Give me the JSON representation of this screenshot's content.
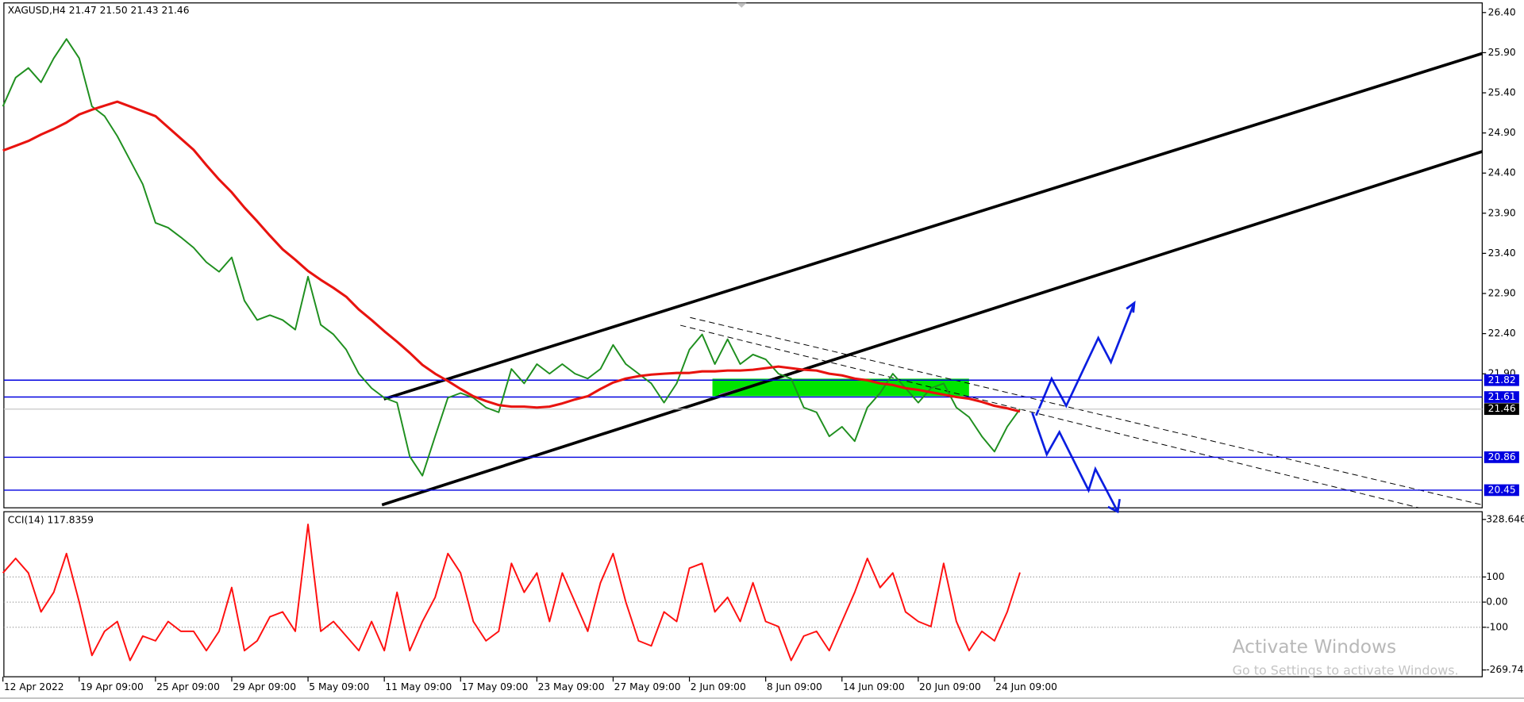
{
  "chart_data": [
    {
      "type": "line",
      "title": "XAGUSD,H4  21.47 21.50 21.43 21.46",
      "categories": [
        "12 Apr 2022",
        null,
        null,
        null,
        null,
        null,
        "19 Apr 09:00",
        null,
        null,
        null,
        null,
        null,
        "25 Apr 09:00",
        null,
        null,
        null,
        null,
        null,
        "29 Apr 09:00",
        null,
        null,
        null,
        null,
        null,
        "5 May 09:00",
        null,
        null,
        null,
        null,
        null,
        "11 May 09:00",
        null,
        null,
        null,
        null,
        null,
        "17 May 09:00",
        null,
        null,
        null,
        null,
        null,
        "23 May 09:00",
        null,
        null,
        null,
        null,
        null,
        "27 May 09:00",
        null,
        null,
        null,
        null,
        null,
        "2 Jun 09:00",
        null,
        null,
        null,
        null,
        null,
        "8 Jun 09:00",
        null,
        null,
        null,
        null,
        null,
        "14 Jun 09:00",
        null,
        null,
        null,
        null,
        null,
        "20 Jun 09:00",
        null,
        null,
        null,
        null,
        null,
        "24 Jun 09:00",
        null,
        null
      ],
      "series": [
        {
          "color": "#1f8f1f",
          "values": [
            25.23,
            25.59,
            25.71,
            25.53,
            25.83,
            26.07,
            25.83,
            25.23,
            25.11,
            24.86,
            24.56,
            24.26,
            23.78,
            23.72,
            23.6,
            23.47,
            23.29,
            23.17,
            23.35,
            22.81,
            22.57,
            22.63,
            22.57,
            22.45,
            23.11,
            22.51,
            22.39,
            22.2,
            21.9,
            21.72,
            21.6,
            21.54,
            20.87,
            20.63,
            21.12,
            21.6,
            21.66,
            21.6,
            21.48,
            21.42,
            21.96,
            21.78,
            22.02,
            21.9,
            22.02,
            21.9,
            21.84,
            21.96,
            22.26,
            22.02,
            21.9,
            21.78,
            21.54,
            21.78,
            22.2,
            22.39,
            22.02,
            22.33,
            22.02,
            22.14,
            22.08,
            21.9,
            21.84,
            21.48,
            21.42,
            21.12,
            21.24,
            21.06,
            21.48,
            21.66,
            21.9,
            21.72,
            21.54,
            21.72,
            21.78,
            21.48,
            21.36,
            21.12,
            20.93,
            21.24,
            21.46
          ]
        },
        {
          "color": "#e8130f",
          "values": [
            24.68,
            24.74,
            24.8,
            24.88,
            24.95,
            25.03,
            25.13,
            25.19,
            25.24,
            25.29,
            25.23,
            25.17,
            25.11,
            24.97,
            24.83,
            24.69,
            24.5,
            24.32,
            24.16,
            23.97,
            23.8,
            23.62,
            23.45,
            23.32,
            23.18,
            23.07,
            22.97,
            22.86,
            22.7,
            22.57,
            22.43,
            22.3,
            22.16,
            22.01,
            21.9,
            21.81,
            21.71,
            21.62,
            21.56,
            21.51,
            21.49,
            21.49,
            21.48,
            21.49,
            21.53,
            21.58,
            21.62,
            21.71,
            21.79,
            21.84,
            21.87,
            21.89,
            21.9,
            21.91,
            21.91,
            21.93,
            21.93,
            21.94,
            21.94,
            21.95,
            21.97,
            21.99,
            21.97,
            21.95,
            21.94,
            21.9,
            21.88,
            21.84,
            21.82,
            21.78,
            21.76,
            21.72,
            21.7,
            21.67,
            21.64,
            21.61,
            21.59,
            21.55,
            21.5,
            21.47,
            21.43
          ]
        }
      ],
      "ylim": [
        20.23,
        26.52
      ],
      "yticks": [
        {
          "value": 26.4,
          "label": "26.40"
        },
        {
          "value": 25.9,
          "label": "25.90"
        },
        {
          "value": 25.4,
          "label": "25.40"
        },
        {
          "value": 24.9,
          "label": "24.90"
        },
        {
          "value": 24.4,
          "label": "24.40"
        },
        {
          "value": 23.9,
          "label": "23.90"
        },
        {
          "value": 23.4,
          "label": "23.40"
        },
        {
          "value": 22.9,
          "label": "22.90"
        },
        {
          "value": 22.4,
          "label": "22.40"
        },
        {
          "value": 21.9,
          "label": "21.90"
        }
      ],
      "levels": [
        21.82,
        21.61,
        20.86,
        20.45
      ],
      "level_color": "#0000e0",
      "last_price": 21.46
    },
    {
      "type": "line",
      "title": "CCI(14) 117.8359",
      "series": [
        {
          "color": "#ff1010",
          "values": [
            116,
            174,
            116,
            -39,
            39,
            193,
            0,
            -212,
            -116,
            -77,
            -232,
            -135,
            -154,
            -77,
            -116,
            -116,
            -193,
            -116,
            58,
            -193,
            -154,
            -58,
            -39,
            -116,
            309,
            -116,
            -77,
            -135,
            -193,
            -77,
            -193,
            39,
            -193,
            -77,
            19,
            193,
            116,
            -77,
            -154,
            -116,
            154,
            39,
            116,
            -77,
            116,
            0,
            -116,
            77,
            193,
            0,
            -154,
            -174,
            -39,
            -77,
            135,
            154,
            -39,
            19,
            -77,
            77,
            -77,
            -97,
            -232,
            -135,
            -116,
            -193,
            -77,
            39,
            174,
            58,
            116,
            -39,
            -77,
            -97,
            154,
            -77,
            -193,
            -116,
            -154,
            -39,
            117.8359
          ]
        }
      ],
      "ylim": [
        -269.749,
        328.646
      ],
      "yticks": [
        328.646,
        100,
        {
          "value": 0,
          "label": "0.00"
        },
        -100,
        -269.749
      ]
    }
  ],
  "watermark": {
    "title": "Activate Windows",
    "subtitle": "Go to Settings to activate Windows."
  }
}
